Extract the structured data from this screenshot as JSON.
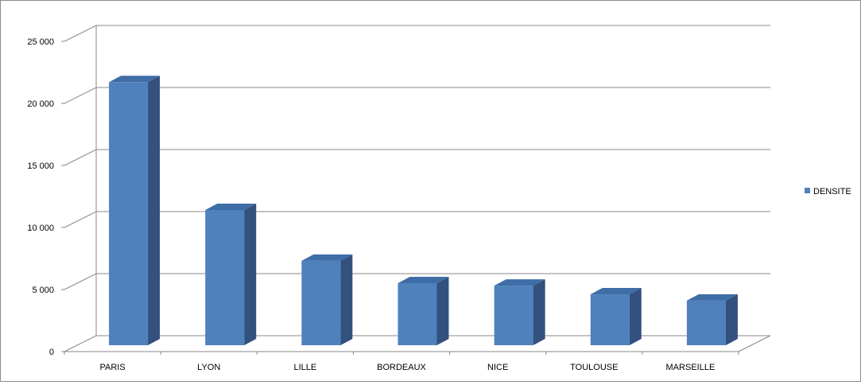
{
  "chart_data": {
    "type": "bar",
    "style": "3d-column",
    "categories": [
      "PARIS",
      "LYON",
      "LILLE",
      "BORDEAUX",
      "NICE",
      "TOULOUSE",
      "MARSEILLE"
    ],
    "series": [
      {
        "name": "DENSITE",
        "values": [
          21200,
          10900,
          6800,
          5000,
          4800,
          4100,
          3600
        ]
      }
    ],
    "yticks": [
      "0",
      "5 000",
      "10 000",
      "15 000",
      "20 000",
      "25 000"
    ],
    "ylim": [
      0,
      25000
    ],
    "grid": true,
    "legend": "right",
    "colors": {
      "front": "#4f81bd",
      "side": "#33517e",
      "top": "#3f6da6"
    }
  }
}
